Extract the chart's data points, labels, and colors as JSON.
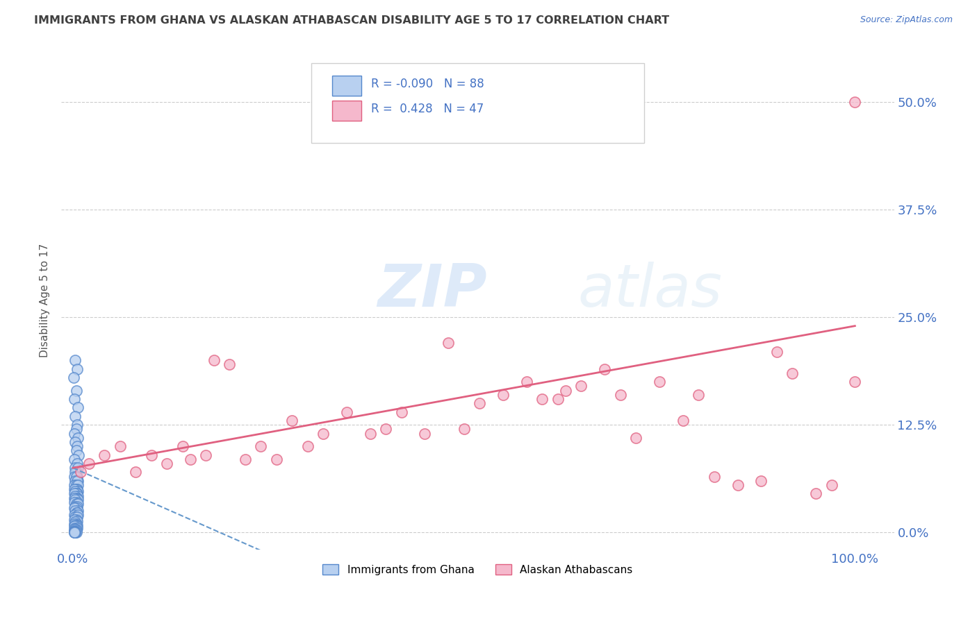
{
  "title": "IMMIGRANTS FROM GHANA VS ALASKAN ATHABASCAN DISABILITY AGE 5 TO 17 CORRELATION CHART",
  "source": "Source: ZipAtlas.com",
  "ylabel": "Disability Age 5 to 17",
  "xticklabels": [
    "0.0%",
    "100.0%"
  ],
  "yticklabels": [
    "0.0%",
    "12.5%",
    "25.0%",
    "37.5%",
    "50.0%"
  ],
  "ytick_values": [
    0.0,
    0.125,
    0.25,
    0.375,
    0.5
  ],
  "xtick_values": [
    0.0,
    1.0
  ],
  "r_ghana": -0.09,
  "n_ghana": 88,
  "r_athabascan": 0.428,
  "n_athabascan": 47,
  "ghana_color": "#b8d0f0",
  "athabascan_color": "#f5b8cc",
  "ghana_edge_color": "#5588cc",
  "athabascan_edge_color": "#e06080",
  "ghana_line_color": "#6699cc",
  "athabascan_line_color": "#e06080",
  "text_color": "#4472c4",
  "title_color": "#404040",
  "background_color": "#ffffff",
  "grid_color": "#cccccc",
  "legend_box_color": "#e8e8e8",
  "ghana_x": [
    0.003,
    0.005,
    0.001,
    0.004,
    0.002,
    0.006,
    0.003,
    0.005,
    0.004,
    0.002,
    0.006,
    0.003,
    0.005,
    0.004,
    0.007,
    0.002,
    0.005,
    0.003,
    0.006,
    0.004,
    0.003,
    0.005,
    0.002,
    0.004,
    0.006,
    0.003,
    0.005,
    0.002,
    0.004,
    0.006,
    0.003,
    0.005,
    0.004,
    0.002,
    0.006,
    0.003,
    0.005,
    0.004,
    0.002,
    0.006,
    0.003,
    0.005,
    0.004,
    0.002,
    0.006,
    0.003,
    0.005,
    0.002,
    0.004,
    0.006,
    0.003,
    0.005,
    0.004,
    0.002,
    0.006,
    0.003,
    0.004,
    0.005,
    0.002,
    0.006,
    0.003,
    0.005,
    0.004,
    0.002,
    0.005,
    0.003,
    0.004,
    0.002,
    0.005,
    0.003,
    0.004,
    0.002,
    0.003,
    0.005,
    0.002,
    0.004,
    0.003,
    0.002,
    0.004,
    0.003,
    0.002,
    0.003,
    0.004,
    0.002,
    0.003,
    0.002,
    0.003,
    0.002
  ],
  "ghana_y": [
    0.2,
    0.19,
    0.18,
    0.165,
    0.155,
    0.145,
    0.135,
    0.125,
    0.12,
    0.115,
    0.11,
    0.105,
    0.1,
    0.095,
    0.09,
    0.085,
    0.08,
    0.075,
    0.075,
    0.07,
    0.07,
    0.065,
    0.065,
    0.065,
    0.06,
    0.06,
    0.06,
    0.055,
    0.055,
    0.055,
    0.05,
    0.05,
    0.05,
    0.05,
    0.048,
    0.048,
    0.045,
    0.045,
    0.045,
    0.042,
    0.042,
    0.04,
    0.04,
    0.04,
    0.038,
    0.038,
    0.035,
    0.035,
    0.033,
    0.033,
    0.03,
    0.03,
    0.028,
    0.028,
    0.025,
    0.025,
    0.023,
    0.023,
    0.02,
    0.02,
    0.018,
    0.018,
    0.015,
    0.015,
    0.013,
    0.012,
    0.01,
    0.01,
    0.008,
    0.008,
    0.007,
    0.007,
    0.005,
    0.005,
    0.004,
    0.003,
    0.003,
    0.002,
    0.002,
    0.001,
    0.001,
    0.001,
    0.0,
    0.0,
    0.0,
    0.0,
    0.0,
    0.0
  ],
  "athabascan_x": [
    0.01,
    0.02,
    0.04,
    0.06,
    0.08,
    0.1,
    0.12,
    0.14,
    0.15,
    0.17,
    0.18,
    0.2,
    0.22,
    0.24,
    0.26,
    0.28,
    0.3,
    0.32,
    0.35,
    0.38,
    0.4,
    0.42,
    0.45,
    0.48,
    0.5,
    0.52,
    0.55,
    0.58,
    0.6,
    0.63,
    0.65,
    0.68,
    0.7,
    0.72,
    0.75,
    0.78,
    0.8,
    0.82,
    0.85,
    0.88,
    0.9,
    0.92,
    0.95,
    0.97,
    1.0,
    0.62,
    1.0
  ],
  "athabascan_y": [
    0.07,
    0.08,
    0.09,
    0.1,
    0.07,
    0.09,
    0.08,
    0.1,
    0.085,
    0.09,
    0.2,
    0.195,
    0.085,
    0.1,
    0.085,
    0.13,
    0.1,
    0.115,
    0.14,
    0.115,
    0.12,
    0.14,
    0.115,
    0.22,
    0.12,
    0.15,
    0.16,
    0.175,
    0.155,
    0.165,
    0.17,
    0.19,
    0.16,
    0.11,
    0.175,
    0.13,
    0.16,
    0.065,
    0.055,
    0.06,
    0.21,
    0.185,
    0.045,
    0.055,
    0.5,
    0.155,
    0.175
  ],
  "ghana_line_intercept": 0.075,
  "ghana_line_slope": -0.4,
  "athabascan_line_intercept": 0.075,
  "athabascan_line_slope": 0.165
}
